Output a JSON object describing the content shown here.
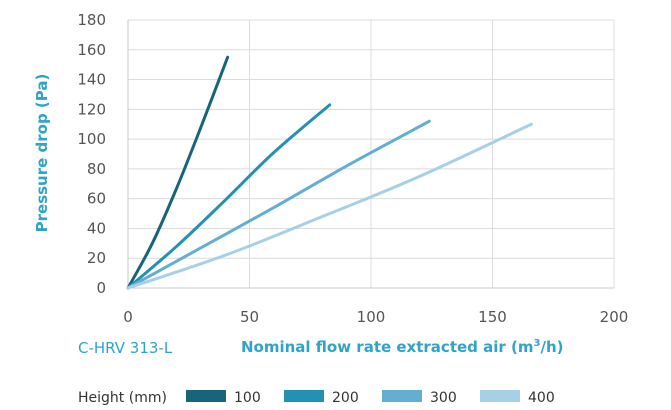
{
  "chart_data": {
    "type": "line",
    "model_label": "C-HRV 313-L",
    "xlabel_main": "Nominal flow rate extracted air (m",
    "xlabel_sup": "3",
    "xlabel_end": "/h)",
    "ylabel": "Pressure drop (Pa)",
    "xlim": [
      0,
      200
    ],
    "ylim": [
      0,
      180
    ],
    "x_ticks": [
      "0",
      "50",
      "100",
      "150",
      "200"
    ],
    "y_ticks": [
      "0",
      "20",
      "40",
      "60",
      "80",
      "100",
      "120",
      "140",
      "160",
      "180"
    ],
    "grid": true,
    "legend_position": "bottom",
    "legend_title": "Height (mm)",
    "series": [
      {
        "name": "100",
        "color": "#16657b",
        "x": [
          0,
          10,
          20,
          30,
          41
        ],
        "y": [
          0,
          30,
          67,
          108,
          155
        ]
      },
      {
        "name": "200",
        "color": "#2490b4",
        "x": [
          0,
          20,
          40,
          60,
          83
        ],
        "y": [
          0,
          28,
          59,
          91,
          123
        ]
      },
      {
        "name": "300",
        "color": "#63aed3",
        "x": [
          0,
          30,
          60,
          90,
          124
        ],
        "y": [
          0,
          27,
          54,
          82,
          112
        ]
      },
      {
        "name": "400",
        "color": "#a6d0e6",
        "x": [
          0,
          40,
          80,
          120,
          166
        ],
        "y": [
          0,
          22,
          48,
          75,
          110
        ]
      }
    ]
  }
}
